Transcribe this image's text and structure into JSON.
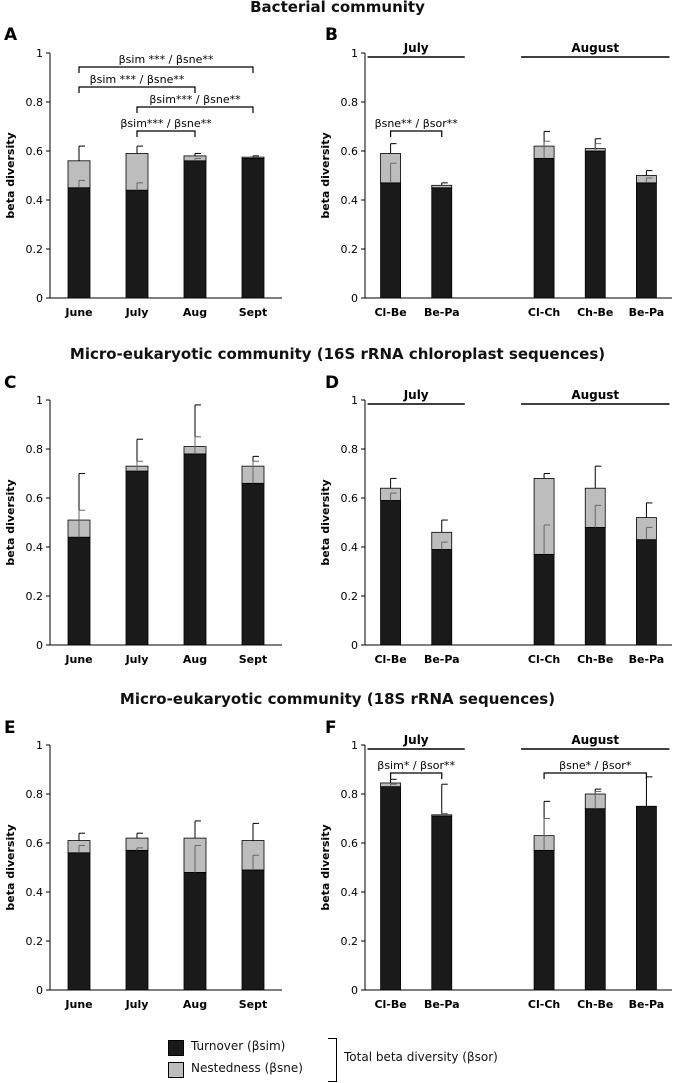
{
  "sections": [
    {
      "title": "Bacterial community"
    },
    {
      "title": "Micro-eukaryotic community (16S rRNA chloroplast sequences)"
    },
    {
      "title": "Micro-eukaryotic community (18S rRNA sequences)"
    }
  ],
  "colors": {
    "turnover": "#1a1a1a",
    "nestedness": "#bdbdbd",
    "axis": "#000000"
  },
  "legend": {
    "turnover_label": "Turnover (βsim)",
    "nestedness_label": "Nestedness (βsne)",
    "total_label": "Total beta diversity (βsor)"
  },
  "chart_data": [
    {
      "panel": "A",
      "type": "bar",
      "stacked": true,
      "ylabel": "beta diversity",
      "ylim": [
        0,
        1
      ],
      "yticks": [
        "0",
        "0.2",
        "0.4",
        "0.6",
        "0.8",
        "1"
      ],
      "categories": [
        "June",
        "July",
        "Aug",
        "Sept"
      ],
      "series": [
        {
          "name": "Turnover",
          "values": [
            0.45,
            0.44,
            0.56,
            0.57
          ]
        },
        {
          "name": "Nestedness",
          "values": [
            0.11,
            0.15,
            0.02,
            0.005
          ]
        }
      ],
      "error_total": [
        0.62,
        0.62,
        0.59,
        0.58
      ],
      "error_turnover": [
        0.48,
        0.47,
        0.57,
        null
      ],
      "annotations": [
        {
          "from": 0,
          "to": 3,
          "text": "βsim *** / βsne**"
        },
        {
          "from": 0,
          "to": 2,
          "text": "βsim *** / βsne**"
        },
        {
          "from": 1,
          "to": 3,
          "text": "βsim*** / βsne**"
        },
        {
          "from": 1,
          "to": 2,
          "text": "βsim*** / βsne**"
        }
      ]
    },
    {
      "panel": "B",
      "type": "bar",
      "stacked": true,
      "ylabel": "beta diversity",
      "ylim": [
        0,
        1
      ],
      "yticks": [
        "0",
        "0.2",
        "0.4",
        "0.6",
        "0.8",
        "1"
      ],
      "categories": [
        "Cl-Be",
        "Be-Pa",
        "",
        "Cl-Ch",
        "Ch-Be",
        "Be-Pa"
      ],
      "groups": [
        {
          "label": "July",
          "from": 0,
          "to": 1
        },
        {
          "label": "August",
          "from": 3,
          "to": 5
        }
      ],
      "series": [
        {
          "name": "Turnover",
          "values": [
            0.47,
            0.45,
            null,
            0.57,
            0.6,
            0.47
          ]
        },
        {
          "name": "Nestedness",
          "values": [
            0.12,
            0.01,
            null,
            0.05,
            0.01,
            0.03
          ]
        }
      ],
      "error_total": [
        0.63,
        0.47,
        null,
        0.68,
        0.65,
        0.52
      ],
      "error_turnover": [
        0.55,
        null,
        null,
        0.64,
        0.63,
        0.49
      ],
      "annotations": [
        {
          "from": 0,
          "to": 1,
          "text": "βsne** / βsor**"
        }
      ]
    },
    {
      "panel": "C",
      "type": "bar",
      "stacked": true,
      "ylabel": "beta diversity",
      "ylim": [
        0,
        1
      ],
      "yticks": [
        "0",
        "0.2",
        "0.4",
        "0.6",
        "0.8",
        "1"
      ],
      "categories": [
        "June",
        "July",
        "Aug",
        "Sept"
      ],
      "series": [
        {
          "name": "Turnover",
          "values": [
            0.44,
            0.71,
            0.78,
            0.66
          ]
        },
        {
          "name": "Nestedness",
          "values": [
            0.07,
            0.02,
            0.03,
            0.07
          ]
        }
      ],
      "error_total": [
        0.7,
        0.84,
        0.98,
        0.77
      ],
      "error_turnover": [
        0.55,
        0.75,
        0.85,
        0.75
      ],
      "annotations": []
    },
    {
      "panel": "D",
      "type": "bar",
      "stacked": true,
      "ylabel": "beta diversity",
      "ylim": [
        0,
        1
      ],
      "yticks": [
        "0",
        "0.2",
        "0.4",
        "0.6",
        "0.8",
        "1"
      ],
      "categories": [
        "Cl-Be",
        "Be-Pa",
        "",
        "Cl-Ch",
        "Ch-Be",
        "Be-Pa"
      ],
      "groups": [
        {
          "label": "July",
          "from": 0,
          "to": 1
        },
        {
          "label": "August",
          "from": 3,
          "to": 5
        }
      ],
      "series": [
        {
          "name": "Turnover",
          "values": [
            0.59,
            0.39,
            null,
            0.37,
            0.48,
            0.43
          ]
        },
        {
          "name": "Nestedness",
          "values": [
            0.05,
            0.07,
            null,
            0.31,
            0.16,
            0.09
          ]
        }
      ],
      "error_total": [
        0.68,
        0.51,
        null,
        0.7,
        0.73,
        0.58
      ],
      "error_turnover": [
        0.62,
        0.42,
        null,
        0.49,
        0.57,
        0.48
      ],
      "annotations": []
    },
    {
      "panel": "E",
      "type": "bar",
      "stacked": true,
      "ylabel": "beta diversity",
      "ylim": [
        0,
        1
      ],
      "yticks": [
        "0",
        "0.2",
        "0.4",
        "0.6",
        "0.8",
        "1"
      ],
      "categories": [
        "June",
        "July",
        "Aug",
        "Sept"
      ],
      "series": [
        {
          "name": "Turnover",
          "values": [
            0.56,
            0.57,
            0.48,
            0.49
          ]
        },
        {
          "name": "Nestedness",
          "values": [
            0.05,
            0.05,
            0.14,
            0.12
          ]
        }
      ],
      "error_total": [
        0.64,
        0.64,
        0.69,
        0.68
      ],
      "error_turnover": [
        0.59,
        0.58,
        0.59,
        0.55
      ],
      "annotations": []
    },
    {
      "panel": "F",
      "type": "bar",
      "stacked": true,
      "ylabel": "beta diversity",
      "ylim": [
        0,
        1
      ],
      "yticks": [
        "0",
        "0.2",
        "0.4",
        "0.6",
        "0.8",
        "1"
      ],
      "categories": [
        "Cl-Be",
        "Be-Pa",
        "",
        "Cl-Ch",
        "Ch-Be",
        "Be-Pa"
      ],
      "groups": [
        {
          "label": "July",
          "from": 0,
          "to": 1
        },
        {
          "label": "August",
          "from": 3,
          "to": 5
        }
      ],
      "series": [
        {
          "name": "Turnover",
          "values": [
            0.83,
            0.71,
            null,
            0.57,
            0.74,
            0.75
          ]
        },
        {
          "name": "Nestedness",
          "values": [
            0.015,
            0.005,
            null,
            0.06,
            0.06,
            0.0
          ]
        }
      ],
      "error_total": [
        0.86,
        0.84,
        null,
        0.77,
        0.82,
        0.87
      ],
      "error_turnover": [
        0.84,
        0.72,
        null,
        0.7,
        0.81,
        null
      ],
      "annotations": [
        {
          "from": 0,
          "to": 1,
          "text": "βsim* / βsor**"
        },
        {
          "from": 3,
          "to": 5,
          "text": "βsne* / βsor*"
        }
      ]
    }
  ]
}
